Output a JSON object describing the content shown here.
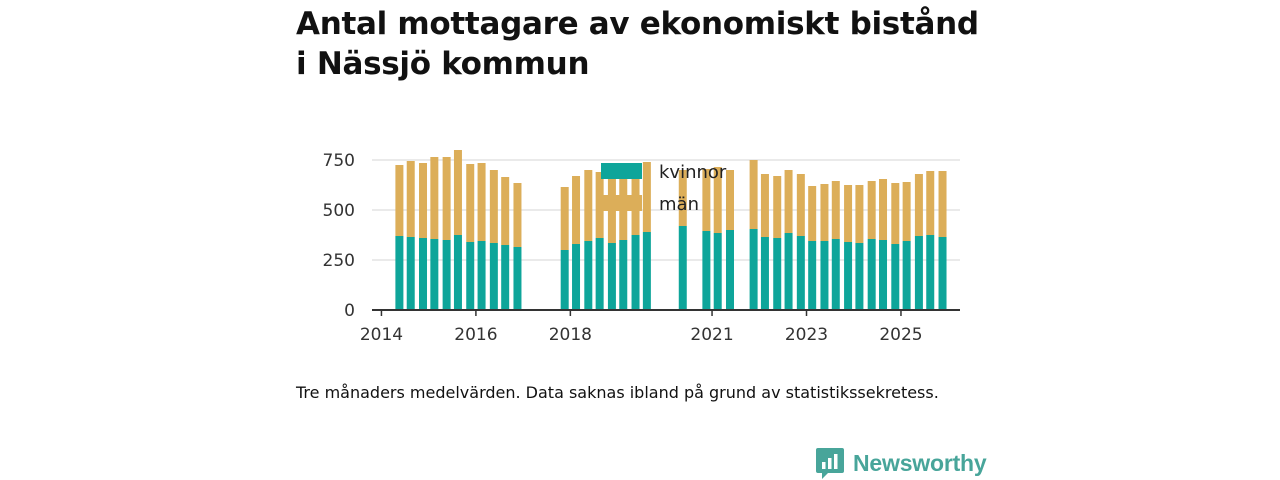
{
  "title_line1": "Antal mottagare av ekonomiskt bistånd",
  "title_line2": "i Nässjö kommun",
  "caption": "Tre månaders medelvärden. Data saknas ibland på grund av statistikssekretess.",
  "brand": "Newsworthy",
  "colors": {
    "kvinnor": "#0ea59a",
    "man": "#dcae59",
    "grid": "#dddddd",
    "axis": "#333333"
  },
  "chart_data": {
    "type": "bar",
    "stacked": true,
    "title": "Antal mottagare av ekonomiskt bistånd i Nässjö kommun",
    "ylim": [
      0,
      800
    ],
    "yticks": [
      0,
      250,
      500,
      750
    ],
    "ytick_labels": [
      "0",
      "250",
      "500",
      "750"
    ],
    "x_domain": [
      2013.8,
      2026.25
    ],
    "xticks": [
      2014,
      2016,
      2018,
      2021,
      2023,
      2025
    ],
    "xtick_labels": [
      "2014",
      "2016",
      "2018",
      "2021",
      "2023",
      "2025"
    ],
    "legend_position": "top-center",
    "legend": [
      "kvinnor",
      "män"
    ],
    "x": [
      2014.38,
      2014.62,
      2014.88,
      2015.12,
      2015.38,
      2015.62,
      2015.88,
      2016.12,
      2016.38,
      2016.62,
      2016.88,
      2017.88,
      2018.12,
      2018.38,
      2018.62,
      2018.88,
      2019.12,
      2019.38,
      2019.62,
      2020.38,
      2020.88,
      2021.12,
      2021.38,
      2021.88,
      2022.12,
      2022.38,
      2022.62,
      2022.88,
      2023.12,
      2023.38,
      2023.62,
      2023.88,
      2024.12,
      2024.38,
      2024.62,
      2024.88,
      2025.12,
      2025.38,
      2025.62,
      2025.88
    ],
    "series": [
      {
        "name": "kvinnor",
        "values": [
          370,
          365,
          360,
          355,
          350,
          375,
          340,
          345,
          335,
          325,
          315,
          300,
          330,
          345,
          360,
          335,
          350,
          375,
          390,
          420,
          395,
          385,
          400,
          405,
          365,
          360,
          385,
          370,
          345,
          345,
          355,
          340,
          335,
          355,
          350,
          330,
          345,
          370,
          375,
          365
        ]
      },
      {
        "name": "män",
        "values": [
          355,
          380,
          375,
          410,
          415,
          425,
          390,
          390,
          365,
          340,
          320,
          315,
          340,
          355,
          330,
          320,
          310,
          300,
          350,
          280,
          310,
          330,
          300,
          345,
          315,
          310,
          315,
          310,
          275,
          285,
          290,
          285,
          290,
          290,
          305,
          305,
          295,
          310,
          320,
          330
        ]
      }
    ]
  }
}
